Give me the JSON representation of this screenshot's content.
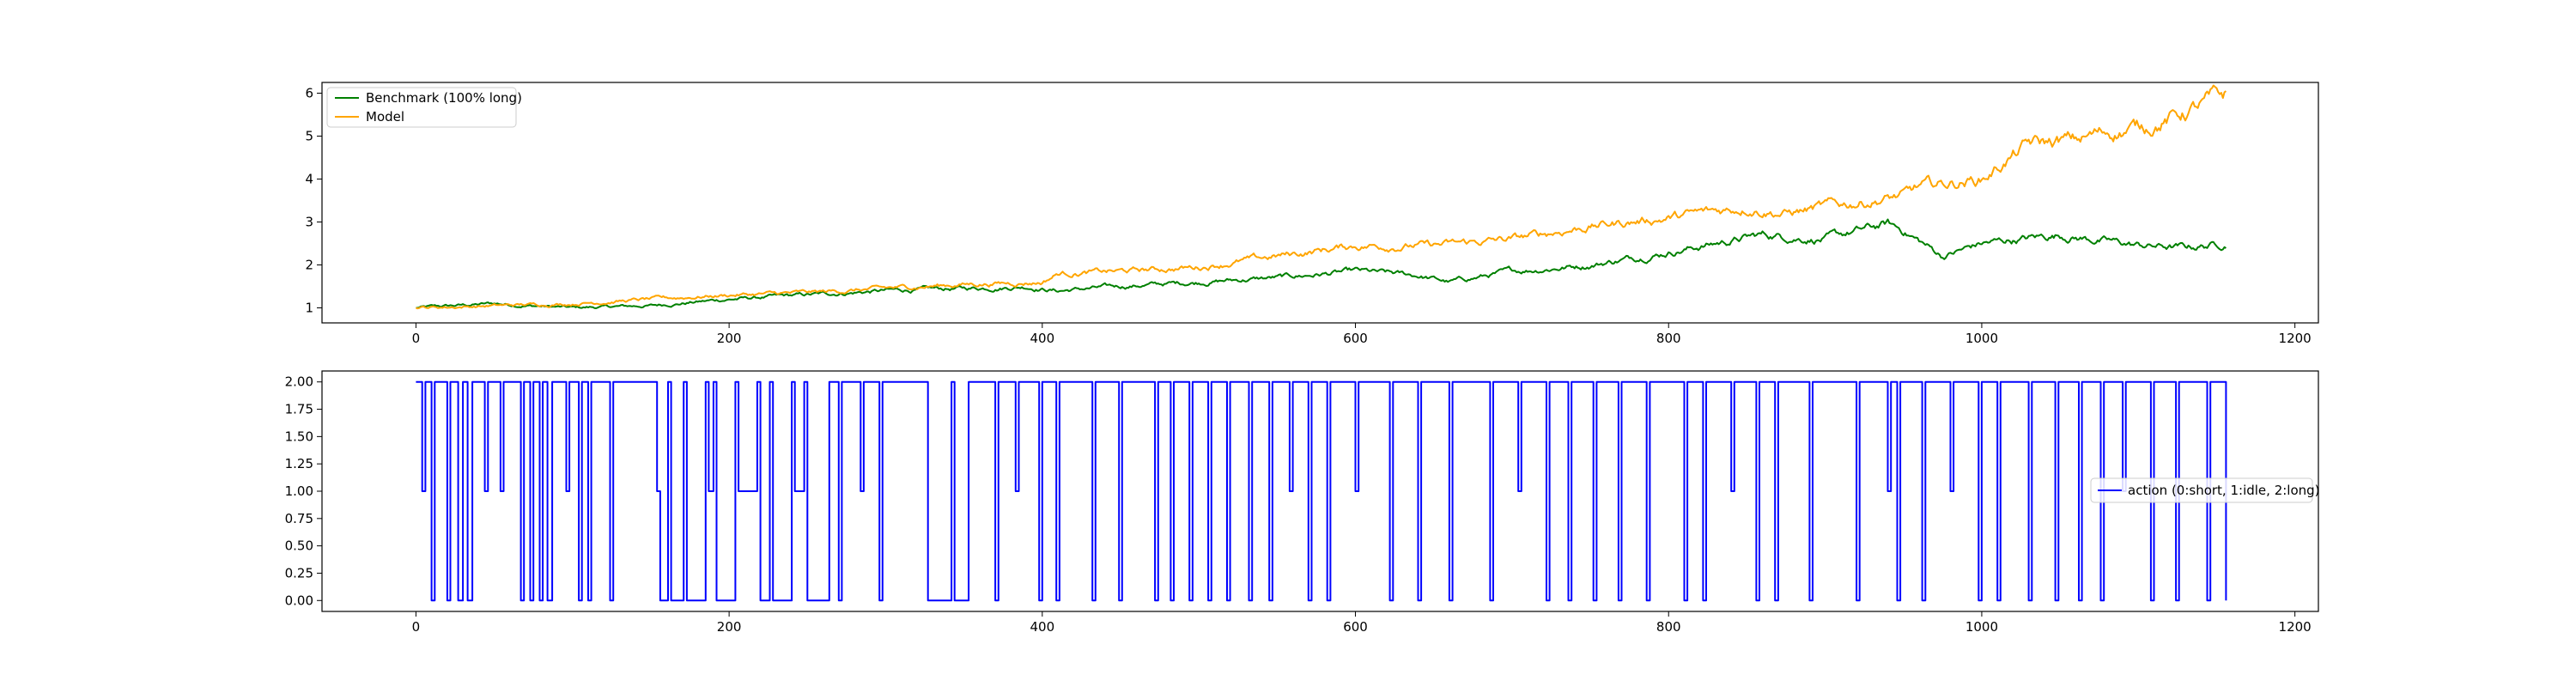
{
  "chart_data": [
    {
      "type": "line",
      "title": "",
      "xlabel": "",
      "ylabel": "",
      "xlim": [
        -60,
        1215
      ],
      "ylim": [
        0.65,
        6.25
      ],
      "xticks": [
        0,
        200,
        400,
        600,
        800,
        1000,
        1200
      ],
      "yticks": [
        1,
        2,
        3,
        4,
        5,
        6
      ],
      "grid": false,
      "legend": "upper left",
      "n_points": 1157,
      "series": [
        {
          "name": "Benchmark (100% long)",
          "color": "#008000",
          "x": [
            0,
            50,
            100,
            150,
            200,
            250,
            300,
            350,
            390,
            410,
            450,
            500,
            550,
            600,
            640,
            660,
            700,
            750,
            800,
            860,
            900,
            940,
            950,
            975,
            1000,
            1050,
            1100,
            1130,
            1156
          ],
          "y": [
            1.0,
            1.1,
            1.0,
            1.05,
            1.2,
            1.3,
            1.4,
            1.45,
            1.5,
            1.4,
            1.5,
            1.6,
            1.7,
            1.85,
            1.75,
            1.6,
            1.85,
            2.0,
            2.3,
            2.7,
            2.6,
            2.95,
            2.8,
            2.2,
            2.5,
            2.7,
            2.45,
            2.4,
            2.5
          ]
        },
        {
          "name": "Model",
          "color": "#FFA500",
          "x": [
            0,
            50,
            100,
            150,
            200,
            250,
            300,
            350,
            400,
            410,
            450,
            500,
            550,
            600,
            650,
            700,
            750,
            800,
            850,
            875,
            900,
            950,
            960,
            1000,
            1030,
            1060,
            1080,
            1100,
            1120,
            1156
          ],
          "y": [
            1.0,
            1.05,
            1.1,
            1.2,
            1.3,
            1.35,
            1.45,
            1.55,
            1.6,
            1.8,
            1.85,
            1.95,
            2.2,
            2.45,
            2.45,
            2.6,
            2.9,
            3.1,
            3.35,
            3.2,
            3.35,
            3.6,
            3.8,
            4.0,
            4.8,
            4.9,
            5.1,
            5.2,
            5.4,
            5.95
          ]
        }
      ]
    },
    {
      "type": "line",
      "title": "",
      "xlabel": "",
      "ylabel": "",
      "xlim": [
        -60,
        1215
      ],
      "ylim": [
        -0.1,
        2.1
      ],
      "xticks": [
        0,
        200,
        400,
        600,
        800,
        1000,
        1200
      ],
      "yticks": [
        "0.00",
        "0.25",
        "0.50",
        "0.75",
        "1.00",
        "1.25",
        "1.50",
        "1.75",
        "2.00"
      ],
      "grid": false,
      "legend": "center right",
      "series": [
        {
          "name": "action (0:short, 1:idle, 2:long)",
          "color": "#0000FF",
          "step_x": [
            0,
            4,
            6,
            10,
            12,
            20,
            22,
            27,
            30,
            33,
            36,
            44,
            46,
            54,
            56,
            67,
            69,
            73,
            75,
            79,
            81,
            84,
            87,
            96,
            98,
            104,
            106,
            110,
            112,
            124,
            126,
            154,
            156,
            161,
            163,
            171,
            173,
            185,
            187,
            190,
            192,
            204,
            206,
            218,
            220,
            226,
            228,
            240,
            242,
            248,
            250,
            262,
            264,
            270,
            272,
            284,
            286,
            296,
            298,
            325,
            327,
            342,
            344,
            351,
            353,
            370,
            372,
            383,
            385,
            398,
            400,
            409,
            411,
            432,
            434,
            449,
            451,
            472,
            474,
            482,
            484,
            494,
            496,
            506,
            508,
            518,
            520,
            532,
            534,
            545,
            547,
            558,
            560,
            570,
            572,
            582,
            584,
            600,
            602,
            622,
            624,
            640,
            642,
            660,
            662,
            686,
            688,
            704,
            706,
            722,
            724,
            736,
            738,
            752,
            754,
            768,
            770,
            786,
            788,
            810,
            812,
            822,
            824,
            840,
            842,
            856,
            858,
            868,
            870,
            890,
            892,
            920,
            922,
            940,
            942,
            946,
            948,
            962,
            964,
            980,
            982,
            998,
            1000,
            1010,
            1012,
            1030,
            1032,
            1047,
            1049,
            1062,
            1064,
            1076,
            1078,
            1090,
            1092,
            1108,
            1110,
            1124,
            1126,
            1144,
            1146,
            1156
          ],
          "step_y": [
            2,
            1,
            2,
            0,
            2,
            0,
            2,
            0,
            2,
            0,
            2,
            1,
            2,
            1,
            2,
            0,
            2,
            0,
            2,
            0,
            2,
            0,
            2,
            1,
            2,
            0,
            2,
            0,
            2,
            0,
            2,
            1,
            0,
            2,
            0,
            2,
            0,
            2,
            1,
            2,
            0,
            2,
            1,
            2,
            0,
            2,
            0,
            2,
            1,
            2,
            0,
            0,
            2,
            0,
            2,
            1,
            2,
            0,
            2,
            2,
            0,
            2,
            0,
            0,
            2,
            0,
            2,
            1,
            2,
            0,
            2,
            0,
            2,
            0,
            2,
            0,
            2,
            0,
            2,
            0,
            2,
            0,
            2,
            0,
            2,
            0,
            2,
            0,
            2,
            0,
            2,
            1,
            2,
            0,
            2,
            0,
            2,
            1,
            2,
            0,
            2,
            0,
            2,
            0,
            2,
            0,
            2,
            1,
            2,
            0,
            2,
            0,
            2,
            0,
            2,
            0,
            2,
            0,
            2,
            0,
            2,
            0,
            2,
            1,
            2,
            0,
            2,
            0,
            2,
            0,
            2,
            0,
            2,
            1,
            2,
            0,
            2,
            0,
            2,
            1,
            2,
            0,
            2,
            0,
            2,
            0,
            2,
            0,
            2,
            0,
            2,
            0,
            2,
            1,
            2,
            0,
            2,
            0,
            2,
            0,
            2,
            0,
            2,
            0,
            0
          ]
        }
      ]
    }
  ]
}
